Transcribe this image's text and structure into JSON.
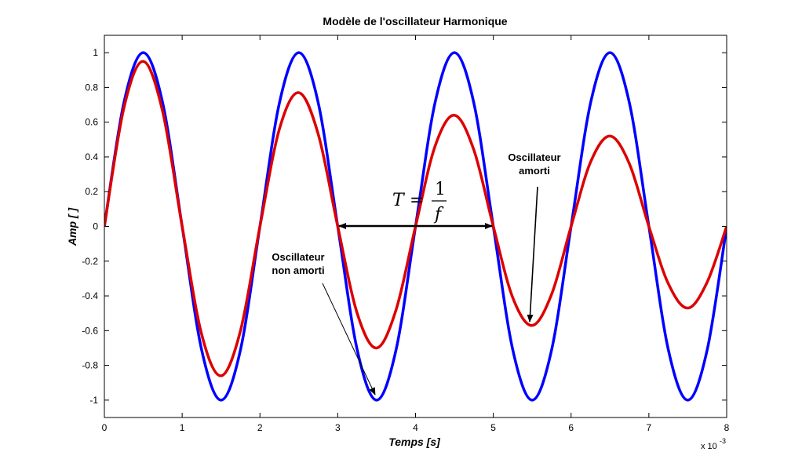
{
  "chart_data": {
    "type": "line",
    "title": "Modèle de l'oscillateur Harmonique",
    "xlabel": "Temps [s]",
    "ylabel": "Amp [ ]",
    "x_exponent_base": "x 10",
    "x_exponent_power": "-3",
    "xlim": [
      0,
      8
    ],
    "ylim": [
      -1.1,
      1.1
    ],
    "xticks": [
      "0",
      "1",
      "2",
      "3",
      "4",
      "5",
      "6",
      "7",
      "8"
    ],
    "yticks": [
      "-1",
      "-0.8",
      "-0.6",
      "-0.4",
      "-0.2",
      "0",
      "0.2",
      "0.4",
      "0.6",
      "0.8",
      "1"
    ],
    "grid": false,
    "series": [
      {
        "name": "Oscillateur non amorti",
        "color": "#0000ff",
        "x": [
          0,
          0.25,
          0.5,
          0.75,
          1,
          1.25,
          1.5,
          1.75,
          2,
          2.25,
          2.5,
          2.75,
          3,
          3.25,
          3.5,
          3.75,
          4,
          4.25,
          4.5,
          4.75,
          5,
          5.25,
          5.5,
          5.75,
          6,
          6.25,
          6.5,
          6.75,
          7,
          7.25,
          7.5,
          7.75,
          8
        ],
        "y": [
          0,
          0.71,
          1,
          0.71,
          0,
          -0.71,
          -1,
          -0.71,
          0,
          0.71,
          1,
          0.71,
          0,
          -0.71,
          -1,
          -0.71,
          0,
          0.71,
          1,
          0.71,
          0,
          -0.71,
          -1,
          -0.71,
          0,
          0.71,
          1,
          0.71,
          0,
          -0.71,
          -1,
          -0.71,
          0
        ]
      },
      {
        "name": "Oscillateur amorti",
        "color": "#dd0000",
        "x": [
          0,
          0.25,
          0.5,
          0.75,
          1,
          1.25,
          1.5,
          1.75,
          2,
          2.25,
          2.5,
          2.75,
          3,
          3.25,
          3.5,
          3.75,
          4,
          4.25,
          4.5,
          4.75,
          5,
          5.25,
          5.5,
          5.75,
          6,
          6.25,
          6.5,
          6.75,
          7,
          7.25,
          7.5,
          7.75,
          8
        ],
        "y": [
          0,
          0.68,
          0.95,
          0.66,
          0,
          -0.62,
          -0.86,
          -0.6,
          0,
          0.56,
          0.77,
          0.53,
          0,
          -0.5,
          -0.7,
          -0.48,
          0,
          0.46,
          0.64,
          0.44,
          0,
          -0.41,
          -0.57,
          -0.39,
          0,
          0.37,
          0.52,
          0.36,
          0,
          -0.33,
          -0.47,
          -0.32,
          0
        ]
      }
    ],
    "annotations": {
      "period_formula": {
        "T": "T",
        "eq": "=",
        "num": "1",
        "den": "f"
      },
      "label_undamped_line1": "Oscillateur",
      "label_undamped_line2": "non amorti",
      "label_damped_line1": "Oscillateur",
      "label_damped_line2": "amorti"
    }
  }
}
